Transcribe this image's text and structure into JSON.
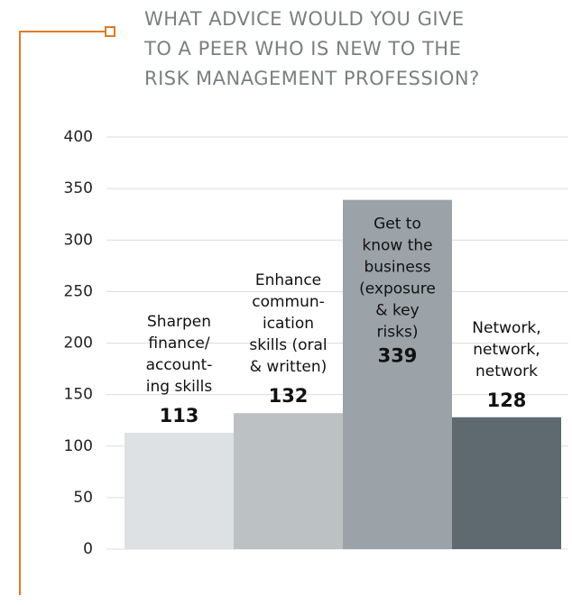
{
  "chart_data": {
    "type": "bar",
    "title": [
      "WHAT ADVICE WOULD YOU GIVE",
      "TO A PEER WHO IS NEW TO THE",
      "RISK MANAGEMENT PROFESSION?"
    ],
    "categories": [
      [
        "Sharpen",
        "finance/",
        "account-",
        "ing skills"
      ],
      [
        "Enhance",
        "commun-",
        "ication",
        "skills (oral",
        "& written)"
      ],
      [
        "Get to",
        "know the",
        "business",
        "(exposure",
        "& key",
        "risks)"
      ],
      [
        "Network,",
        "network,",
        "network"
      ]
    ],
    "values": [
      113,
      132,
      339,
      128
    ],
    "colors": [
      "#dde1e3",
      "#bcc2c4",
      "#9ba3a8",
      "#5f6a70"
    ],
    "ylim": [
      0,
      400
    ],
    "yticks": [
      0,
      50,
      100,
      150,
      200,
      250,
      300,
      350,
      400
    ],
    "grid": true
  }
}
